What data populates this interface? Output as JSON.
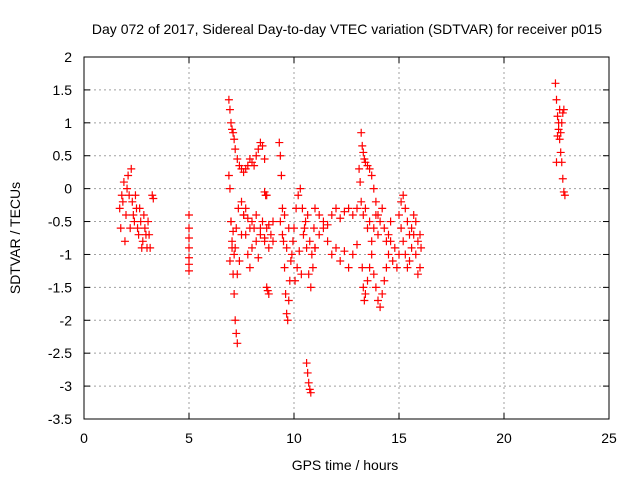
{
  "chart_data": {
    "type": "scatter",
    "title": "Day 072 of 2017, Sidereal Day-to-day VTEC variation (SDTVAR) for receiver p015",
    "xlabel": "GPS time / hours",
    "ylabel": "SDTVAR / TECUs",
    "xlim": [
      0,
      25
    ],
    "ylim": [
      -3.5,
      2
    ],
    "grid": true,
    "x_ticks": [
      0,
      5,
      10,
      15,
      20,
      25
    ],
    "x_tick_labels": [
      "0",
      "5",
      "10",
      "15",
      "20",
      "25"
    ],
    "y_ticks": [
      -3.5,
      -3,
      -2.5,
      -2,
      -1.5,
      -1,
      -0.5,
      0,
      0.5,
      1,
      1.5,
      2
    ],
    "y_tick_labels": [
      "-3.5",
      "-3",
      "-2.5",
      "-2",
      "-1.5",
      "-1",
      "-0.5",
      "0",
      "0.5",
      "1",
      "1.5",
      "2"
    ],
    "marker": "plus",
    "color": "#ff0000",
    "segments": [
      {
        "name": "seg-a",
        "x": [
          1.7,
          1.8,
          1.9,
          2.0,
          2.1,
          2.2,
          2.3,
          2.4,
          2.5,
          2.6,
          2.7,
          2.8,
          2.9,
          3.0,
          3.1
        ],
        "y": [
          -0.3,
          -0.1,
          0.1,
          -0.4,
          0.2,
          -0.6,
          -0.2,
          -0.5,
          -0.3,
          -0.7,
          -0.5,
          -0.8,
          -0.6,
          -0.9,
          -0.7
        ]
      },
      {
        "name": "seg-a2",
        "x": [
          1.75,
          1.85,
          1.95,
          2.05,
          2.15,
          2.25,
          2.35,
          2.45,
          2.55,
          2.65,
          2.75,
          2.85,
          2.95,
          3.05,
          3.15
        ],
        "y": [
          -0.6,
          -0.2,
          -0.8,
          0.0,
          -0.1,
          0.3,
          -0.4,
          -0.1,
          -0.6,
          -0.3,
          -0.9,
          -0.4,
          -0.7,
          -0.5,
          -0.9
        ]
      },
      {
        "name": "seg-b",
        "x": [
          3.25,
          3.3
        ],
        "y": [
          -0.1,
          -0.15
        ]
      },
      {
        "name": "seg-c",
        "x": [
          5.0,
          5.0,
          5.0,
          5.0,
          5.0,
          5.0,
          5.0
        ],
        "y": [
          -0.4,
          -0.6,
          -0.75,
          -0.9,
          -1.05,
          -1.15,
          -1.25
        ]
      },
      {
        "name": "seg-d1",
        "x": [
          6.9,
          6.95,
          7.0,
          7.05,
          7.1,
          7.15,
          7.2,
          7.3,
          7.4,
          7.5,
          7.6,
          7.7,
          7.8,
          7.9,
          8.0,
          8.1,
          8.2,
          8.3,
          8.4,
          8.5,
          8.6
        ],
        "y": [
          1.35,
          1.2,
          1.0,
          0.9,
          0.85,
          0.75,
          0.6,
          0.45,
          0.35,
          0.3,
          0.25,
          0.3,
          0.35,
          0.45,
          0.4,
          0.35,
          0.5,
          0.6,
          0.7,
          0.65,
          0.45
        ]
      },
      {
        "name": "seg-d2",
        "x": [
          6.9,
          6.95,
          7.0,
          7.05,
          7.1,
          7.15,
          7.2,
          7.25,
          7.3
        ],
        "y": [
          0.2,
          0.0,
          -0.5,
          -0.9,
          -1.3,
          -1.6,
          -2.0,
          -2.2,
          -2.35
        ]
      },
      {
        "name": "seg-d3",
        "x": [
          6.95,
          7.05,
          7.15,
          7.25,
          7.35,
          7.5,
          7.6,
          7.7,
          7.8,
          7.9,
          8.0,
          8.1,
          8.2,
          8.3,
          8.4,
          8.5,
          8.6,
          8.7,
          8.8,
          8.9,
          9.0
        ],
        "y": [
          -1.1,
          -0.8,
          -1.0,
          -0.6,
          -0.3,
          -0.2,
          -0.4,
          -0.7,
          -1.0,
          -1.2,
          -0.9,
          -0.6,
          -0.8,
          -1.05,
          -0.7,
          -0.5,
          -0.8,
          -0.6,
          -0.9,
          -0.7,
          -0.5
        ]
      },
      {
        "name": "seg-d4",
        "x": [
          7.0,
          7.1,
          7.2,
          7.3,
          7.4,
          7.5,
          7.6,
          7.7,
          7.8,
          7.9,
          8.0,
          8.2,
          8.4,
          8.6,
          8.8,
          9.0
        ],
        "y": [
          -0.5,
          -0.65,
          -0.9,
          -1.3,
          -1.1,
          -0.7,
          -0.4,
          -0.3,
          -0.45,
          -0.6,
          -0.5,
          -0.4,
          -0.6,
          -0.75,
          -0.55,
          -0.8
        ]
      },
      {
        "name": "seg-e",
        "x": [
          8.7,
          8.75,
          8.8
        ],
        "y": [
          -1.5,
          -1.55,
          -1.6
        ]
      },
      {
        "name": "seg-e2",
        "x": [
          8.6,
          8.65,
          8.7
        ],
        "y": [
          -0.05,
          -0.1,
          -0.1
        ]
      },
      {
        "name": "seg-f1",
        "x": [
          9.3,
          9.35,
          9.4,
          9.45,
          9.5,
          9.55,
          9.6,
          9.65,
          9.7,
          9.75,
          9.8,
          9.9,
          10.0,
          10.1,
          10.2,
          10.3,
          10.4,
          10.5,
          10.6,
          10.7,
          10.8,
          10.9,
          11.0
        ],
        "y": [
          0.7,
          0.5,
          0.2,
          -0.3,
          -0.8,
          -1.2,
          -1.6,
          -1.9,
          -2.0,
          -1.7,
          -1.4,
          -1.0,
          -0.6,
          -0.3,
          -0.1,
          0.0,
          -0.3,
          -0.6,
          -0.9,
          -1.3,
          -1.5,
          -1.2,
          -0.9
        ]
      },
      {
        "name": "seg-f2",
        "x": [
          9.35,
          9.45,
          9.55,
          9.65,
          9.75,
          9.85,
          9.95,
          10.05,
          10.15,
          10.25,
          10.35,
          10.45,
          10.55,
          10.65,
          10.75,
          10.85,
          10.95
        ],
        "y": [
          -0.5,
          -0.7,
          -0.4,
          -0.9,
          -0.6,
          -1.1,
          -0.8,
          -1.4,
          -1.2,
          -0.95,
          -1.3,
          -0.7,
          -0.5,
          -0.4,
          -0.8,
          -1.0,
          -0.6
        ]
      },
      {
        "name": "seg-f3",
        "x": [
          10.6,
          10.65,
          10.7,
          10.75,
          10.8
        ],
        "y": [
          -2.65,
          -2.8,
          -2.95,
          -3.05,
          -3.1
        ]
      },
      {
        "name": "seg-g1",
        "x": [
          11.0,
          11.2,
          11.4,
          11.6,
          11.8,
          12.0,
          12.2,
          12.4,
          12.6,
          12.8,
          13.0
        ],
        "y": [
          -0.9,
          -0.7,
          -0.5,
          -0.55,
          -0.4,
          -0.3,
          -0.45,
          -0.35,
          -0.3,
          -0.4,
          -0.3
        ]
      },
      {
        "name": "seg-g2",
        "x": [
          11.0,
          11.2,
          11.4,
          11.6,
          11.8,
          12.0,
          12.2,
          12.4,
          12.6,
          12.8,
          13.0
        ],
        "y": [
          -0.3,
          -0.4,
          -0.6,
          -0.8,
          -1.0,
          -0.9,
          -1.1,
          -0.95,
          -1.2,
          -1.0,
          -0.85
        ]
      },
      {
        "name": "seg-h1",
        "x": [
          13.2,
          13.25,
          13.3,
          13.35,
          13.4,
          13.5,
          13.6,
          13.7,
          13.8,
          13.9,
          14.0,
          14.1,
          14.2,
          14.3,
          14.4,
          14.5,
          14.6
        ],
        "y": [
          0.85,
          0.65,
          0.55,
          0.45,
          0.4,
          0.35,
          0.3,
          0.2,
          0.0,
          -0.2,
          -0.4,
          -0.5,
          -0.3,
          -0.6,
          -0.8,
          -0.7,
          -0.5
        ]
      },
      {
        "name": "seg-h2",
        "x": [
          13.25,
          13.3,
          13.35,
          13.4,
          13.5,
          13.6,
          13.7,
          13.8,
          13.9,
          14.0,
          14.1,
          14.2,
          14.3,
          14.4,
          14.5,
          14.6,
          14.7,
          14.8,
          14.9,
          15.0
        ],
        "y": [
          -1.2,
          -1.5,
          -1.7,
          -1.6,
          -1.4,
          -1.2,
          -1.0,
          -1.3,
          -1.5,
          -1.7,
          -1.8,
          -1.6,
          -1.4,
          -1.2,
          -1.0,
          -0.8,
          -1.1,
          -0.9,
          -1.2,
          -1.0
        ]
      },
      {
        "name": "seg-h3",
        "x": [
          13.1,
          13.15,
          13.2,
          13.3,
          13.4,
          13.5,
          13.6,
          13.7,
          13.8,
          13.9,
          14.0
        ],
        "y": [
          0.3,
          0.1,
          -0.2,
          -0.4,
          -0.3,
          -0.6,
          -0.5,
          -0.8,
          -0.6,
          -0.4,
          -0.7
        ]
      },
      {
        "name": "seg-i",
        "x": [
          15.0,
          15.1,
          15.2,
          15.3,
          15.4,
          15.5,
          15.6,
          15.7,
          15.8,
          15.9,
          16.0,
          16.05
        ],
        "y": [
          -0.4,
          -0.6,
          -0.8,
          -1.0,
          -1.2,
          -1.1,
          -0.9,
          -0.7,
          -1.0,
          -1.3,
          -1.2,
          -0.9
        ]
      },
      {
        "name": "seg-i2",
        "x": [
          15.1,
          15.2,
          15.3,
          15.4,
          15.5,
          15.6,
          15.7,
          15.8,
          15.9,
          16.0
        ],
        "y": [
          -0.2,
          -0.1,
          -0.3,
          -0.5,
          -0.7,
          -0.6,
          -0.4,
          -0.5,
          -0.8,
          -0.7
        ]
      },
      {
        "name": "seg-j",
        "x": [
          22.45,
          22.5,
          22.55,
          22.6,
          22.65,
          22.7,
          22.75,
          22.8,
          22.85,
          22.9
        ],
        "y": [
          1.6,
          1.35,
          1.1,
          0.9,
          0.75,
          0.55,
          0.4,
          0.15,
          -0.05,
          -0.1
        ]
      },
      {
        "name": "seg-j2",
        "x": [
          22.5,
          22.55,
          22.6,
          22.65,
          22.7,
          22.75,
          22.8,
          22.85
        ],
        "y": [
          0.4,
          0.8,
          1.0,
          1.2,
          0.85,
          1.0,
          1.15,
          1.2
        ]
      }
    ]
  }
}
